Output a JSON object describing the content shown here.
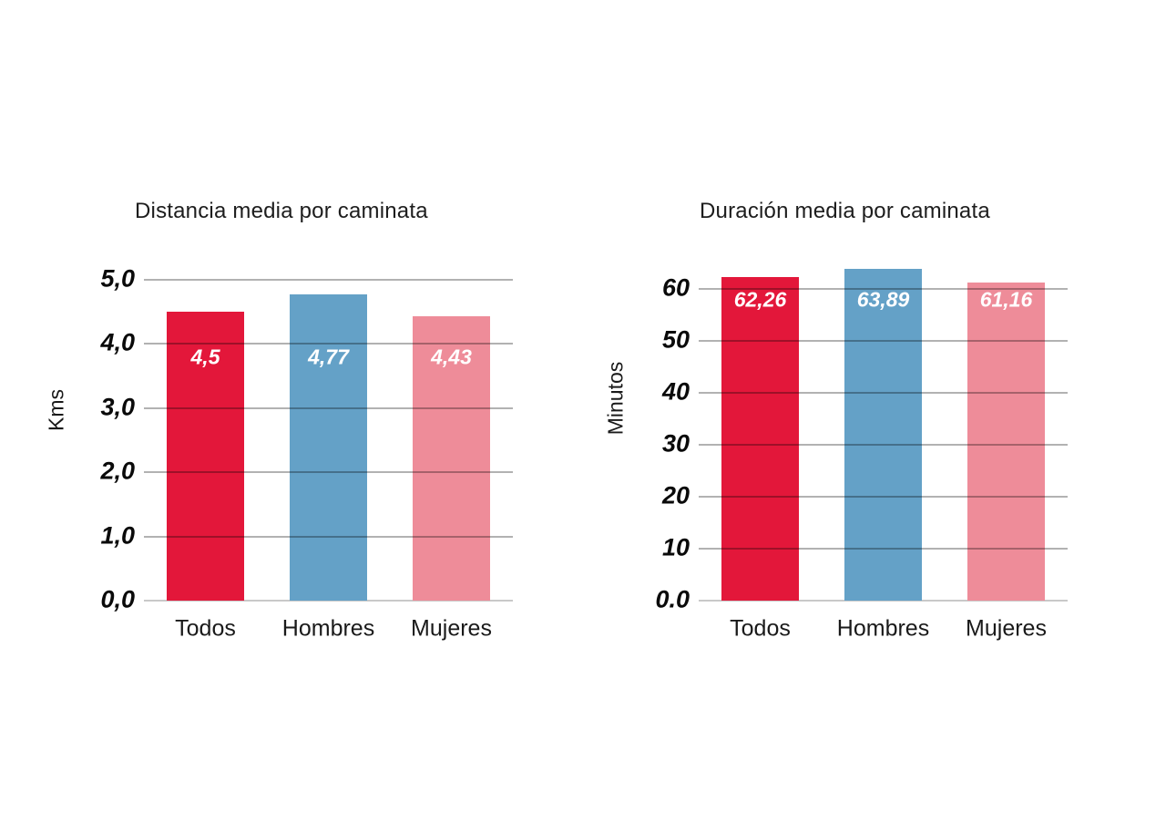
{
  "chart_data": [
    {
      "type": "bar",
      "title": "Distancia media por caminata",
      "ylabel": "Kms",
      "xlabel": "",
      "categories": [
        "Todos",
        "Hombres",
        "Mujeres"
      ],
      "values": [
        4.5,
        4.77,
        4.43
      ],
      "value_labels": [
        "4,5",
        "4,77",
        "4,43"
      ],
      "bar_colors": [
        "#e3173a",
        "#64a1c7",
        "#ee8c99"
      ],
      "yticks": [
        {
          "value": 5,
          "label": "5,0"
        },
        {
          "value": 4,
          "label": "4,0"
        },
        {
          "value": 3,
          "label": "3,0"
        },
        {
          "value": 2,
          "label": "2,0"
        },
        {
          "value": 1,
          "label": "1,0"
        },
        {
          "value": 0,
          "label": "0,0"
        }
      ],
      "ylim": [
        0,
        5.3
      ],
      "grid": true,
      "legend": "none",
      "value_label_position": "inside-top, baseline-aligned across bars"
    },
    {
      "type": "bar",
      "title": "Duración media por caminata",
      "ylabel": "Minutos",
      "xlabel": "",
      "categories": [
        "Todos",
        "Hombres",
        "Mujeres"
      ],
      "values": [
        62.26,
        63.89,
        61.16
      ],
      "value_labels": [
        "62,26",
        "63,89",
        "61,16"
      ],
      "bar_colors": [
        "#e3173a",
        "#64a1c7",
        "#ee8c99"
      ],
      "yticks": [
        {
          "value": 60,
          "label": "60"
        },
        {
          "value": 50,
          "label": "50"
        },
        {
          "value": 40,
          "label": "40"
        },
        {
          "value": 30,
          "label": "30"
        },
        {
          "value": 20,
          "label": "20"
        },
        {
          "value": 10,
          "label": "10"
        },
        {
          "value": 0,
          "label": "0.0"
        }
      ],
      "ylim": [
        0,
        65
      ],
      "grid": true,
      "legend": "none",
      "value_label_position": "inside-top, baseline-aligned across bars"
    }
  ],
  "colors": {
    "background": "#ffffff",
    "gridline": "#ababab",
    "baseline": "#c9c9c9",
    "series_todos": "#e3173a",
    "series_hombres": "#64a1c7",
    "series_mujeres": "#ee8c99"
  }
}
